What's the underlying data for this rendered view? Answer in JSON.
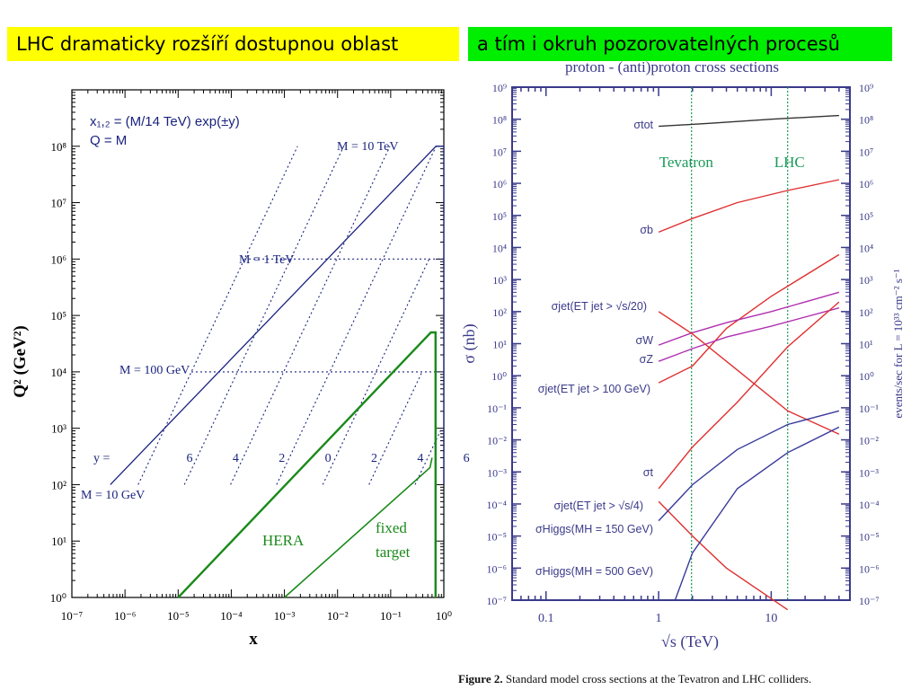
{
  "banners": {
    "left": "LHC dramaticky rozšíří dostupnou oblast",
    "right": "a tím i okruh pozorovatelných procesů"
  },
  "caption": {
    "label": "Figure 2.",
    "text": "Standard model cross sections at the Tevatron and LHC colliders."
  },
  "chart_data": [
    {
      "type": "line",
      "title": "",
      "xlabel": "x",
      "ylabel": "Q² (GeV²)",
      "xscale": "log",
      "yscale": "log",
      "xlim": [
        1e-07,
        1
      ],
      "ylim": [
        1,
        1000000000.0
      ],
      "x_ticks": [
        "10⁻⁷",
        "10⁻⁶",
        "10⁻⁵",
        "10⁻⁴",
        "10⁻³",
        "10⁻²",
        "10⁻¹",
        "10⁰"
      ],
      "y_ticks": [
        "10⁰",
        "10¹",
        "10²",
        "10³",
        "10⁴",
        "10⁵",
        "10⁶",
        "10⁷",
        "10⁸"
      ],
      "annotations": {
        "formula1": "x₁,₂ = (M/14 TeV) exp(±y)",
        "formula2": "Q = M",
        "m10tev": "M = 10 TeV",
        "m1tev": "M = 1 TeV",
        "m100gev": "M = 100 GeV",
        "m10gev": "M = 10 GeV",
        "y_prefix": "y =",
        "y_values": [
          "6",
          "4",
          "2",
          "0",
          "2",
          "4",
          "6"
        ],
        "hera": "HERA",
        "fixed": "fixed",
        "target": "target"
      },
      "colors": {
        "lhc": "#1a237e",
        "hera": "#1a8a1a"
      },
      "series": [
        {
          "name": "LHC",
          "points": [
            [
              5.3e-07,
              100
            ],
            [
              0.71,
              100000000.0
            ],
            [
              1,
              100000000.0
            ],
            [
              1,
              100
            ]
          ]
        },
        {
          "name": "HERA",
          "points": [
            [
              1e-05,
              1
            ],
            [
              0.57,
              50000
            ],
            [
              0.7,
              50000
            ],
            [
              0.7,
              1
            ]
          ]
        },
        {
          "name": "fixed target",
          "points": [
            [
              0.001,
              1
            ],
            [
              0.55,
              200
            ],
            [
              0.6,
              300
            ]
          ]
        }
      ]
    },
    {
      "type": "line",
      "title": "proton - (anti)proton cross sections",
      "xlabel": "√s   (TeV)",
      "ylabel": "σ  (nb)",
      "ylabel_right": "events/sec  for  L = 10³³ cm⁻² s⁻¹",
      "xscale": "log",
      "yscale": "log",
      "xlim": [
        0.05,
        50
      ],
      "ylim": [
        1e-07,
        1000000000.0
      ],
      "x_ticks": [
        "0.1",
        "1",
        "10"
      ],
      "y_ticks_left": [
        "10⁻⁷",
        "10⁻⁶",
        "10⁻⁵",
        "10⁻⁴",
        "10⁻³",
        "10⁻²",
        "10⁻¹",
        "10⁰",
        "10¹",
        "10²",
        "10³",
        "10⁴",
        "10⁵",
        "10⁶",
        "10⁷",
        "10⁸",
        "10⁹"
      ],
      "y_ticks_right": [
        "10⁻⁷",
        "10⁻⁶",
        "10⁻⁵",
        "10⁻⁴",
        "10⁻³",
        "10⁻²",
        "10⁻¹",
        "10⁰",
        "10¹",
        "10²",
        "10³",
        "10⁴",
        "10⁵",
        "10⁶",
        "10⁷",
        "10⁸",
        "10⁹"
      ],
      "vlines": [
        {
          "label": "Tevatron",
          "x": 1.96
        },
        {
          "label": "LHC",
          "x": 14
        }
      ],
      "colors": {
        "tot": "#333333",
        "red": "#e03030",
        "magenta": "#b030b0",
        "blue": "#3a3a9a",
        "green": "#1a9a5a",
        "text": "#3a3a8a"
      },
      "series": [
        {
          "label": "σtot",
          "color": "tot",
          "points": [
            [
              1,
              60000000.0
            ],
            [
              3,
              75000000.0
            ],
            [
              10,
              100000000.0
            ],
            [
              40,
              130000000.0
            ]
          ]
        },
        {
          "label": "σb",
          "color": "red",
          "points": [
            [
              1,
              30000.0
            ],
            [
              2,
              80000.0
            ],
            [
              5,
              250000.0
            ],
            [
              14,
              600000.0
            ],
            [
              40,
              1300000.0
            ]
          ]
        },
        {
          "label": "σjet(ET jet > √s/20)",
          "color": "red",
          "points": [
            [
              1,
              0.6
            ],
            [
              2,
              2
            ],
            [
              4,
              30
            ],
            [
              10,
              300
            ],
            [
              40,
              6000
            ]
          ]
        },
        {
          "label": "σW",
          "color": "magenta",
          "points": [
            [
              1,
              9
            ],
            [
              2,
              22
            ],
            [
              4,
              45
            ],
            [
              10,
              100
            ],
            [
              40,
              400
            ]
          ]
        },
        {
          "label": "σZ",
          "color": "magenta",
          "points": [
            [
              1,
              2.8
            ],
            [
              2,
              7
            ],
            [
              4,
              16
            ],
            [
              10,
              35
            ],
            [
              40,
              130
            ]
          ]
        },
        {
          "label": "σjet(ET jet > 100 GeV)",
          "color": "red",
          "points": [
            [
              1,
              100
            ],
            [
              2,
              20
            ],
            [
              5,
              1.5
            ],
            [
              14,
              0.08
            ],
            [
              40,
              0.015
            ]
          ]
        },
        {
          "label": "σt",
          "color": "red",
          "points": [
            [
              1,
              0.0003
            ],
            [
              2,
              0.006
            ],
            [
              5,
              0.15
            ],
            [
              14,
              8
            ],
            [
              40,
              200
            ]
          ]
        },
        {
          "label": "σjet(ET jet > √s/4)",
          "color": "red",
          "points": [
            [
              1,
              0.00012
            ],
            [
              2,
              1e-05
            ],
            [
              4,
              1e-06
            ],
            [
              14,
              5e-08
            ]
          ]
        },
        {
          "label": "σHiggs(MH = 150 GeV)",
          "color": "blue",
          "points": [
            [
              1,
              3e-05
            ],
            [
              2,
              0.0004
            ],
            [
              5,
              0.005
            ],
            [
              14,
              0.03
            ],
            [
              40,
              0.08
            ]
          ]
        },
        {
          "label": "σHiggs(MH = 500 GeV)",
          "color": "blue",
          "points": [
            [
              1.4,
              1e-07
            ],
            [
              2,
              3e-06
            ],
            [
              5,
              0.0003
            ],
            [
              14,
              0.004
            ],
            [
              40,
              0.025
            ]
          ]
        }
      ]
    }
  ]
}
